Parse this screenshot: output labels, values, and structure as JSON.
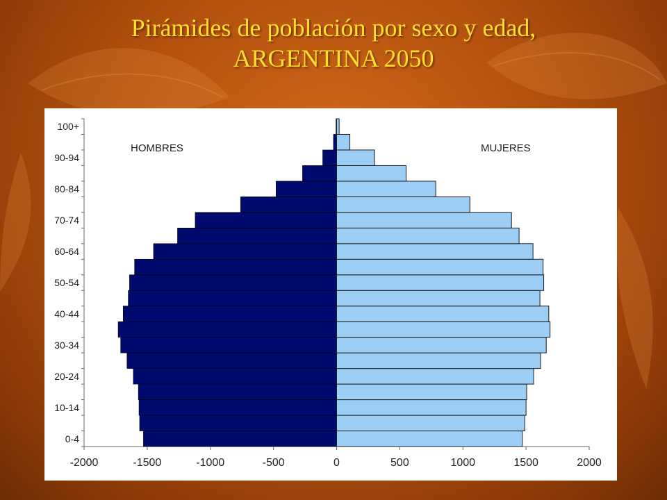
{
  "slide": {
    "title_line1": "Pirámides de población por sexo y edad,",
    "title_line2": "ARGENTINA 2050"
  },
  "colors": {
    "background": "#b4520e",
    "title": "#ffdf2e",
    "males": "#000a6e",
    "females": "#9ccdf5"
  },
  "chart_data": {
    "type": "bar",
    "orientation": "horizontal-pyramid",
    "title": "",
    "xlabel": "",
    "ylabel": "",
    "xlim": [
      -2000,
      2000
    ],
    "x_ticks": [
      -2000,
      -1500,
      -1000,
      -500,
      0,
      500,
      1000,
      1500,
      2000
    ],
    "age_groups": [
      "0-4",
      "5-9",
      "10-14",
      "15-19",
      "20-24",
      "25-29",
      "30-34",
      "35-39",
      "40-44",
      "45-49",
      "50-54",
      "55-59",
      "60-64",
      "65-69",
      "70-74",
      "75-79",
      "80-84",
      "85-89",
      "90-94",
      "95-99",
      "100+"
    ],
    "age_tick_labels": [
      "0-4",
      "10-14",
      "20-24",
      "30-34",
      "40-44",
      "50-54",
      "60-64",
      "70-74",
      "80-84",
      "90-94",
      "100+"
    ],
    "series": [
      {
        "name": "HOMBRES",
        "legend_position": "top-left",
        "values": [
          -1530,
          -1560,
          -1565,
          -1570,
          -1610,
          -1660,
          -1710,
          -1730,
          -1690,
          -1650,
          -1640,
          -1600,
          -1450,
          -1260,
          -1120,
          -760,
          -480,
          -270,
          -110,
          -25,
          -5
        ]
      },
      {
        "name": "MUJERES",
        "legend_position": "top-right",
        "values": [
          1470,
          1490,
          1500,
          1505,
          1560,
          1615,
          1660,
          1690,
          1680,
          1610,
          1640,
          1635,
          1555,
          1445,
          1385,
          1055,
          785,
          550,
          300,
          105,
          20
        ]
      }
    ]
  }
}
